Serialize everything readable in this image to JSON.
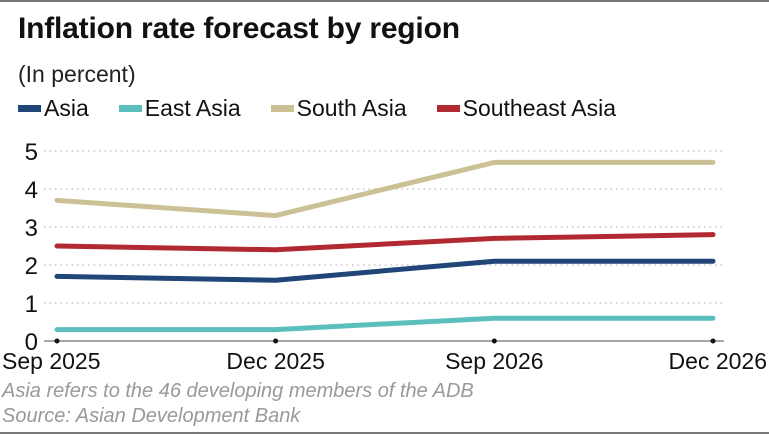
{
  "chart_data": {
    "type": "line",
    "title": "Inflation rate forecast by region",
    "subtitle": "(In percent)",
    "xlabel": "",
    "ylabel": "",
    "x": [
      "Sep 2025",
      "Dec 2025",
      "Sep 2026",
      "Dec 2026"
    ],
    "ylim": [
      0,
      5
    ],
    "yticks": [
      0,
      1,
      2,
      3,
      4,
      5
    ],
    "grid": true,
    "legend_position": "top-left",
    "series": [
      {
        "name": "Asia",
        "color": "#1f4677",
        "values": [
          1.7,
          1.6,
          2.1,
          2.1
        ]
      },
      {
        "name": "East Asia",
        "color": "#5bbfbd",
        "values": [
          0.3,
          0.3,
          0.6,
          0.6
        ]
      },
      {
        "name": "South Asia",
        "color": "#cbc195",
        "values": [
          3.7,
          3.3,
          4.7,
          4.7
        ]
      },
      {
        "name": "Southeast Asia",
        "color": "#b22a31",
        "values": [
          2.5,
          2.4,
          2.7,
          2.8
        ]
      }
    ],
    "notes": [
      "Asia refers to the 46 developing members of the ADB",
      "Source: Asian Development Bank"
    ]
  }
}
